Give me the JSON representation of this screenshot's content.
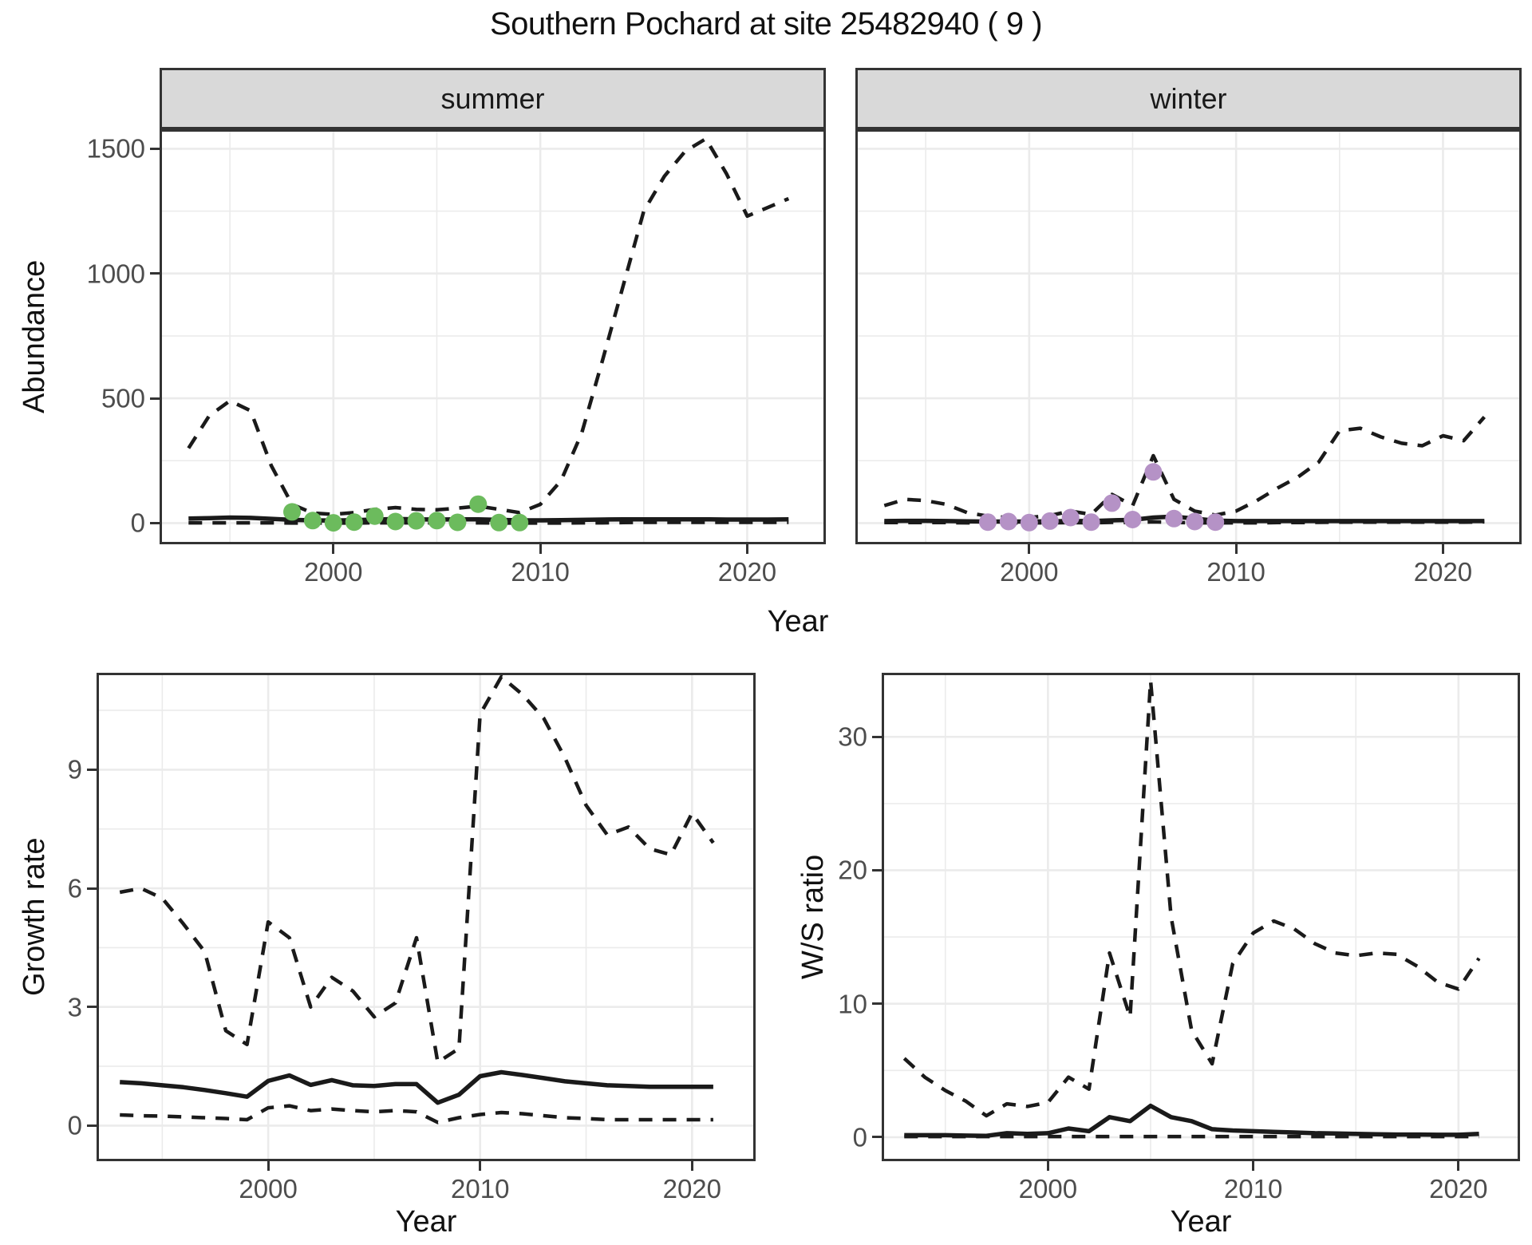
{
  "title": "Southern Pochard at site 25482940 ( 9 )",
  "colors": {
    "line": "#1a1a1a",
    "observed_summer": "#6cbb5d",
    "observed_winter": "#b592c6",
    "strip_bg": "#d9d9d9",
    "grid": "#ebebeb",
    "panel_border": "#333333",
    "tick_text": "#4d4d4d"
  },
  "chart_data": [
    {
      "id": "abundance-summer",
      "type": "line",
      "strip": "summer",
      "ylabel": "Abundance",
      "xlabel": "Year",
      "x_domain": [
        1991.6,
        2023.8
      ],
      "y_domain": [
        -85,
        1578
      ],
      "x_ticks": [
        2000,
        2010,
        2020
      ],
      "x_minor": [
        1995,
        2005,
        2015
      ],
      "y_ticks": [
        0,
        500,
        1000,
        1500
      ],
      "y_minor": [
        250,
        750,
        1250
      ],
      "show_y_tick_labels": true,
      "legend_position": "none",
      "grid": true,
      "years": [
        1993,
        1994,
        1995,
        1996,
        1997,
        1998,
        1999,
        2000,
        2001,
        2002,
        2003,
        2004,
        2005,
        2006,
        2007,
        2008,
        2009,
        2010,
        2011,
        2012,
        2013,
        2014,
        2015,
        2016,
        2017,
        2018,
        2019,
        2020,
        2021,
        2022
      ],
      "series": [
        {
          "name": "upper-ci",
          "style": "dashed",
          "values": [
            300,
            430,
            490,
            450,
            230,
            75,
            40,
            35,
            42,
            55,
            62,
            55,
            53,
            60,
            68,
            55,
            42,
            75,
            170,
            360,
            650,
            950,
            1250,
            1390,
            1490,
            1540,
            1400,
            1230,
            1265,
            1300
          ]
        },
        {
          "name": "lower-ci",
          "style": "dashed",
          "values": [
            1,
            1,
            1,
            1,
            1,
            0,
            0,
            0,
            0,
            1,
            1,
            1,
            1,
            1,
            1,
            0,
            0,
            0,
            0,
            1,
            1,
            2,
            3,
            3,
            3,
            3,
            3,
            3,
            3,
            3
          ]
        },
        {
          "name": "mean",
          "style": "solid",
          "values": [
            18,
            20,
            22,
            21,
            17,
            13,
            11,
            10,
            12,
            14,
            16,
            15,
            14,
            15,
            15,
            13,
            11,
            11,
            12,
            13,
            14,
            15,
            15,
            15,
            15,
            15,
            14,
            14,
            14,
            15
          ]
        }
      ],
      "points": {
        "name": "observed-summer-counts",
        "color": "#6cbb5d",
        "years": [
          1998,
          1999,
          2000,
          2001,
          2002,
          2003,
          2004,
          2005,
          2006,
          2007,
          2008,
          2009
        ],
        "values": [
          45,
          10,
          1,
          4,
          28,
          6,
          9,
          10,
          3,
          76,
          2,
          2
        ]
      }
    },
    {
      "id": "abundance-winter",
      "type": "line",
      "strip": "winter",
      "ylabel": "",
      "xlabel": "",
      "x_domain": [
        1991.6,
        2023.8
      ],
      "y_domain": [
        -85,
        1578
      ],
      "x_ticks": [
        2000,
        2010,
        2020
      ],
      "x_minor": [
        1995,
        2005,
        2015
      ],
      "y_ticks": [
        0,
        500,
        1000,
        1500
      ],
      "y_minor": [
        250,
        750,
        1250
      ],
      "show_y_tick_labels": false,
      "legend_position": "none",
      "grid": true,
      "years": [
        1993,
        1994,
        1995,
        1996,
        1997,
        1998,
        1999,
        2000,
        2001,
        2002,
        2003,
        2004,
        2005,
        2006,
        2007,
        2008,
        2009,
        2010,
        2011,
        2012,
        2013,
        2014,
        2015,
        2016,
        2017,
        2018,
        2019,
        2020,
        2021,
        2022
      ],
      "series": [
        {
          "name": "upper-ci",
          "style": "dashed",
          "values": [
            70,
            95,
            90,
            75,
            42,
            28,
            22,
            22,
            30,
            48,
            35,
            115,
            70,
            270,
            95,
            48,
            32,
            48,
            90,
            140,
            185,
            245,
            370,
            380,
            345,
            320,
            310,
            350,
            330,
            425
          ]
        },
        {
          "name": "lower-ci",
          "style": "dashed",
          "values": [
            2,
            2,
            2,
            2,
            1,
            1,
            1,
            1,
            1,
            2,
            1,
            3,
            2,
            5,
            3,
            1,
            1,
            1,
            1,
            2,
            2,
            3,
            4,
            4,
            4,
            4,
            4,
            4,
            4,
            5
          ]
        },
        {
          "name": "mean",
          "style": "solid",
          "values": [
            8,
            9,
            9,
            8,
            7,
            6,
            6,
            6,
            7,
            8,
            8,
            11,
            13,
            22,
            26,
            18,
            10,
            8,
            8,
            8,
            8,
            8,
            8,
            8,
            8,
            8,
            8,
            8,
            8,
            8
          ]
        }
      ],
      "points": {
        "name": "observed-winter-counts",
        "color": "#b592c6",
        "years": [
          1998,
          1999,
          2000,
          2001,
          2002,
          2003,
          2004,
          2005,
          2006,
          2007,
          2008,
          2009
        ],
        "values": [
          4,
          6,
          2,
          8,
          22,
          4,
          80,
          14,
          205,
          18,
          6,
          4
        ]
      }
    },
    {
      "id": "growth-rate",
      "type": "line",
      "strip": "",
      "ylabel": "Growth rate",
      "xlabel": "Year",
      "x_domain": [
        1991.9,
        2023.0
      ],
      "y_domain": [
        -0.9,
        11.45
      ],
      "x_ticks": [
        2000,
        2010,
        2020
      ],
      "x_minor": [
        1995,
        2005,
        2015
      ],
      "y_ticks": [
        0,
        3,
        6,
        9
      ],
      "y_minor": [
        1.5,
        4.5,
        7.5,
        10.5
      ],
      "show_y_tick_labels": true,
      "legend_position": "none",
      "grid": true,
      "years": [
        1993,
        1994,
        1995,
        1996,
        1997,
        1998,
        1999,
        2000,
        2001,
        2002,
        2003,
        2004,
        2005,
        2006,
        2007,
        2008,
        2009,
        2010,
        2011,
        2012,
        2013,
        2014,
        2015,
        2016,
        2017,
        2018,
        2019,
        2020,
        2021
      ],
      "series": [
        {
          "name": "upper-ci",
          "style": "dashed",
          "values": [
            5.9,
            6.0,
            5.75,
            5.1,
            4.4,
            2.4,
            2.05,
            5.15,
            4.75,
            3.0,
            3.75,
            3.4,
            2.75,
            3.1,
            4.75,
            1.6,
            1.95,
            10.4,
            11.35,
            10.9,
            10.3,
            9.3,
            8.1,
            7.35,
            7.55,
            7.0,
            6.85,
            7.9,
            7.15
          ]
        },
        {
          "name": "lower-ci",
          "style": "dashed",
          "values": [
            0.27,
            0.25,
            0.24,
            0.22,
            0.2,
            0.18,
            0.15,
            0.45,
            0.5,
            0.38,
            0.42,
            0.38,
            0.35,
            0.38,
            0.35,
            0.08,
            0.2,
            0.28,
            0.33,
            0.3,
            0.25,
            0.2,
            0.18,
            0.15,
            0.15,
            0.15,
            0.15,
            0.15,
            0.15
          ]
        },
        {
          "name": "mean",
          "style": "solid",
          "values": [
            1.1,
            1.07,
            1.02,
            0.97,
            0.9,
            0.82,
            0.73,
            1.13,
            1.27,
            1.03,
            1.15,
            1.02,
            1.0,
            1.05,
            1.05,
            0.58,
            0.78,
            1.25,
            1.35,
            1.28,
            1.2,
            1.12,
            1.07,
            1.02,
            1.0,
            0.98,
            0.98,
            0.98,
            0.98
          ]
        }
      ],
      "points": null
    },
    {
      "id": "ws-ratio",
      "type": "line",
      "strip": "",
      "ylabel": "W/S ratio",
      "xlabel": "Year",
      "x_domain": [
        1991.9,
        2023.0
      ],
      "y_domain": [
        -1.8,
        34.8
      ],
      "x_ticks": [
        2000,
        2010,
        2020
      ],
      "x_minor": [
        1995,
        2005,
        2015
      ],
      "y_ticks": [
        0,
        10,
        20,
        30
      ],
      "y_minor": [
        5,
        15,
        25
      ],
      "show_y_tick_labels": true,
      "legend_position": "none",
      "grid": true,
      "years": [
        1993,
        1994,
        1995,
        1996,
        1997,
        1998,
        1999,
        2000,
        2001,
        2002,
        2003,
        2004,
        2005,
        2006,
        2007,
        2008,
        2009,
        2010,
        2011,
        2012,
        2013,
        2014,
        2015,
        2016,
        2017,
        2018,
        2019,
        2020,
        2021
      ],
      "series": [
        {
          "name": "upper-ci",
          "style": "dashed",
          "values": [
            5.9,
            4.5,
            3.5,
            2.7,
            1.6,
            2.5,
            2.3,
            2.6,
            4.5,
            3.6,
            13.8,
            9.0,
            34.2,
            16.5,
            8.0,
            5.5,
            13.0,
            15.3,
            16.2,
            15.6,
            14.5,
            13.8,
            13.6,
            13.8,
            13.7,
            12.8,
            11.6,
            11.1,
            13.4
          ]
        },
        {
          "name": "lower-ci",
          "style": "dashed",
          "values": [
            0.05,
            0.05,
            0.05,
            0.05,
            0.05,
            0.05,
            0.05,
            0.05,
            0.05,
            0.05,
            0.05,
            0.05,
            0.05,
            0.05,
            0.05,
            0.05,
            0.05,
            0.05,
            0.05,
            0.05,
            0.05,
            0.05,
            0.05,
            0.05,
            0.05,
            0.05,
            0.05,
            0.05,
            0.05
          ]
        },
        {
          "name": "mean",
          "style": "solid",
          "values": [
            0.15,
            0.15,
            0.15,
            0.12,
            0.1,
            0.3,
            0.25,
            0.3,
            0.65,
            0.45,
            1.5,
            1.2,
            2.35,
            1.5,
            1.2,
            0.6,
            0.5,
            0.45,
            0.4,
            0.35,
            0.3,
            0.28,
            0.25,
            0.22,
            0.2,
            0.2,
            0.18,
            0.18,
            0.25
          ]
        }
      ],
      "points": null
    }
  ]
}
